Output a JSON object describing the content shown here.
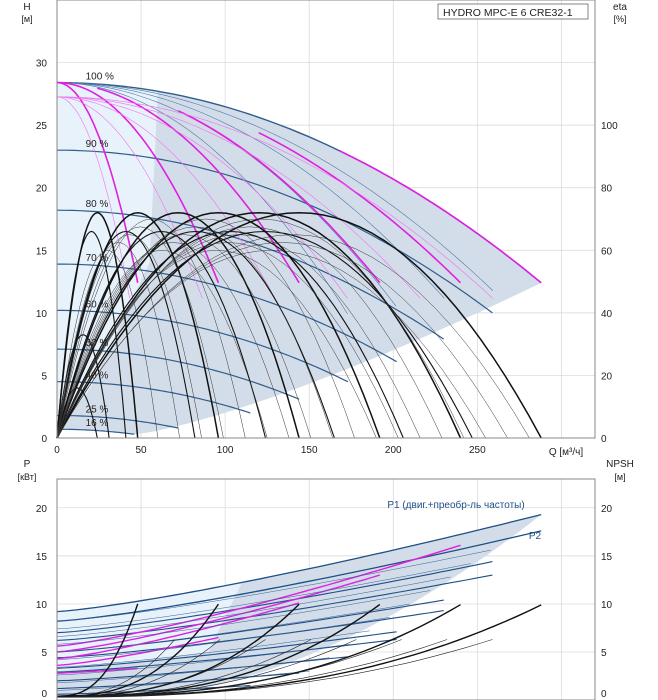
{
  "chart_data": [
    {
      "type": "line",
      "title": "HYDRO MPC-E 6 CRE32-1",
      "ylabel": "H",
      "yunit": "[м]",
      "y2label": "eta",
      "y2unit": "[%]",
      "xlabel": "Q [м³/ч]",
      "xlim": [
        0,
        320
      ],
      "ylim": [
        0,
        35
      ],
      "y2lim": [
        0,
        140
      ],
      "xticks": [
        0,
        50,
        100,
        150,
        200,
        250
      ],
      "yticks": [
        0,
        5,
        10,
        15,
        20,
        25,
        30
      ],
      "y2ticks": [
        0,
        20,
        40,
        60,
        80,
        100
      ],
      "speed_curves": [
        {
          "label": "100 %",
          "h0": 28.4,
          "qmax": 288,
          "hend": 12.4
        },
        {
          "label": "90 %",
          "h0": 23.0,
          "qmax": 259,
          "hend": 10.0
        },
        {
          "label": "80 %",
          "h0": 18.2,
          "qmax": 230,
          "hend": 7.9
        },
        {
          "label": "70 %",
          "h0": 13.9,
          "qmax": 202,
          "hend": 6.1
        },
        {
          "label": "60 %",
          "h0": 10.2,
          "qmax": 173,
          "hend": 4.5
        },
        {
          "label": "50 %",
          "h0": 7.1,
          "qmax": 144,
          "hend": 3.1
        },
        {
          "label": "40 %",
          "h0": 4.5,
          "qmax": 115,
          "hend": 2.0
        },
        {
          "label": "25 %",
          "h0": 1.8,
          "qmax": 72,
          "hend": 0.8
        },
        {
          "label": "16 %",
          "h0": 0.7,
          "qmax": 46,
          "hend": 0.3
        }
      ],
      "pump_curves_100": [
        48,
        96,
        144,
        192,
        240,
        288
      ],
      "eta_curves": [
        {
          "qmax": 48,
          "peak": 72,
          "scale": 1.0
        },
        {
          "qmax": 96,
          "peak": 72,
          "scale": 1.0
        },
        {
          "qmax": 144,
          "peak": 72,
          "scale": 1.0
        },
        {
          "qmax": 192,
          "peak": 72,
          "scale": 1.0
        },
        {
          "qmax": 240,
          "peak": 72,
          "scale": 1.0
        },
        {
          "qmax": 288,
          "peak": 72,
          "scale": 1.0
        },
        {
          "qmax": 41,
          "peak": 66,
          "scale": 0.85
        },
        {
          "qmax": 82,
          "peak": 66,
          "scale": 0.85
        },
        {
          "qmax": 124,
          "peak": 66,
          "scale": 0.85
        },
        {
          "qmax": 165,
          "peak": 66,
          "scale": 0.85
        },
        {
          "qmax": 206,
          "peak": 66,
          "scale": 0.85
        },
        {
          "qmax": 247,
          "peak": 66,
          "scale": 0.85
        },
        {
          "qmax": 31,
          "peak": 33,
          "scale": 0.55
        },
        {
          "qmax": 24,
          "peak": 16,
          "scale": 0.4
        }
      ]
    },
    {
      "type": "line",
      "ylabel": "P",
      "yunit": "[кВт]",
      "y2label": "NPSH",
      "y2unit": "[м]",
      "xlim": [
        0,
        320
      ],
      "ylim": [
        0,
        23
      ],
      "y2lim": [
        0,
        23
      ],
      "yticks": [
        0,
        5,
        10,
        15,
        20
      ],
      "y2ticks": [
        0,
        5,
        10,
        15,
        20
      ],
      "power_curves": [
        {
          "name": "P1 (двиг.+преобр-ль частоты)",
          "p0": 9.2,
          "qmax": 288,
          "pend": 19.3
        },
        {
          "name": "P2",
          "p0": 8.2,
          "qmax": 288,
          "pend": 17.6
        },
        {
          "name": "",
          "p0": 7.0,
          "qmax": 259,
          "pend": 14.4
        },
        {
          "name": "",
          "p0": 6.2,
          "qmax": 259,
          "pend": 13.0
        },
        {
          "name": "",
          "p0": 5.0,
          "qmax": 230,
          "pend": 10.4
        },
        {
          "name": "",
          "p0": 4.4,
          "qmax": 230,
          "pend": 9.3
        },
        {
          "name": "",
          "p0": 3.3,
          "qmax": 202,
          "pend": 7.1
        },
        {
          "name": "",
          "p0": 2.9,
          "qmax": 202,
          "pend": 6.3
        },
        {
          "name": "",
          "p0": 2.0,
          "qmax": 173,
          "pend": 4.5
        },
        {
          "name": "",
          "p0": 1.2,
          "qmax": 144,
          "pend": 2.8
        },
        {
          "name": "",
          "p0": 0.6,
          "qmax": 115,
          "pend": 1.5
        }
      ],
      "magenta_curves": [
        {
          "p0": 5.6,
          "qmax": 240,
          "pend": 16.1
        },
        {
          "p0": 5.0,
          "qmax": 192,
          "pend": 13.0
        },
        {
          "p0": 4.3,
          "qmax": 144,
          "pend": 10.1
        },
        {
          "p0": 3.6,
          "qmax": 96,
          "pend": 6.5
        },
        {
          "p0": 2.8,
          "qmax": 48,
          "pend": 3.3
        }
      ],
      "npsh_curves": [
        48,
        96,
        144,
        192,
        240,
        288
      ]
    }
  ]
}
